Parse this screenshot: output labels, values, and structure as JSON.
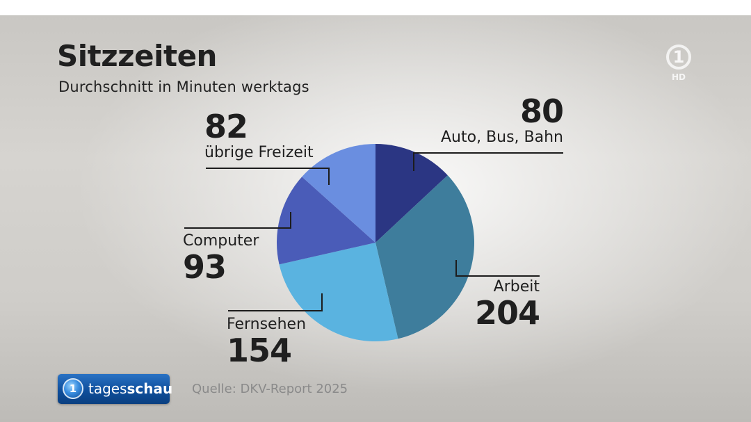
{
  "header": {
    "title": "Sitzzeiten",
    "subtitle": "Durchschnitt in Minuten werktags"
  },
  "chart_data": {
    "type": "pie",
    "title": "Sitzzeiten",
    "subtitle": "Durchschnitt in Minuten werktags",
    "unit": "Minuten",
    "start_angle_deg": 0,
    "direction": "clockwise",
    "slices": [
      {
        "label": "Auto, Bus, Bahn",
        "value": 80,
        "color": "#2b3683"
      },
      {
        "label": "Arbeit",
        "value": 204,
        "color": "#3e7d9c"
      },
      {
        "label": "Fernsehen",
        "value": 154,
        "color": "#5ab3e0"
      },
      {
        "label": "Computer",
        "value": 93,
        "color": "#4a5cb8"
      },
      {
        "label": "übrige Freizeit",
        "value": 82,
        "color": "#6a8ee0"
      }
    ],
    "value_labels": [
      "80",
      "204",
      "154",
      "93",
      "82"
    ],
    "source": "Quelle: DKV-Report 2025"
  },
  "branding": {
    "channel_logo_text": "1",
    "channel_logo_sub": "HD",
    "show_name_light": "tages",
    "show_name_bold": "schau"
  },
  "footer": {
    "source": "Quelle: DKV-Report 2025"
  }
}
